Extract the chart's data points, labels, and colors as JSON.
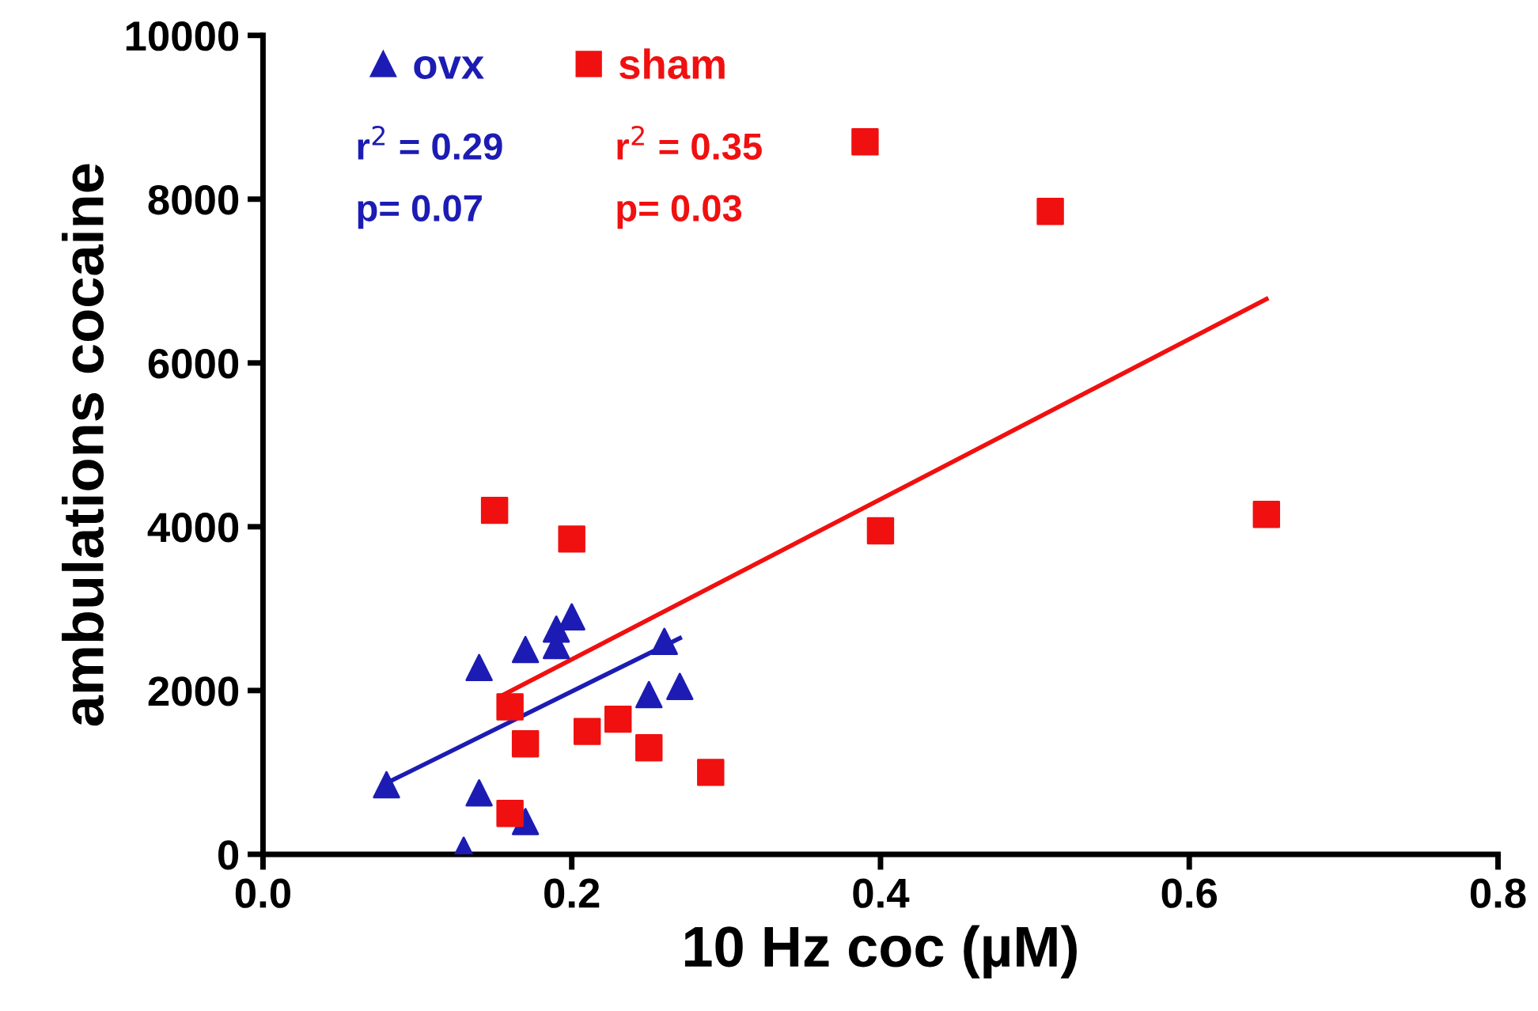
{
  "chart_data": {
    "type": "scatter",
    "xlabel": "10 Hz coc (µM)",
    "ylabel": "ambulations cocaine",
    "xlim": [
      0,
      0.8
    ],
    "xticks": [
      {
        "value": 0,
        "label": "0.0"
      },
      {
        "value": 0.2,
        "label": "0.2"
      },
      {
        "value": 0.4,
        "label": "0.4"
      },
      {
        "value": 0.6,
        "label": "0.6"
      },
      {
        "value": 0.8,
        "label": "0.8"
      }
    ],
    "ylim": [
      0,
      10000
    ],
    "yticks": [
      0,
      2000,
      4000,
      6000,
      8000,
      10000
    ],
    "grid": false,
    "legend": "top left",
    "series": [
      {
        "name": "ovx",
        "color": "#1c1cb4",
        "marker": "triangle",
        "x": [
          0.08,
          0.13,
          0.14,
          0.14,
          0.17,
          0.17,
          0.19,
          0.19,
          0.2,
          0.25,
          0.26,
          0.27
        ],
        "values": [
          850,
          50,
          750,
          2280,
          400,
          2500,
          2550,
          2750,
          2900,
          1950,
          2600,
          2050
        ]
      },
      {
        "name": "sham",
        "color": "#f01010",
        "marker": "square",
        "x": [
          0.15,
          0.16,
          0.16,
          0.17,
          0.2,
          0.21,
          0.23,
          0.25,
          0.29,
          0.39,
          0.4,
          0.51,
          0.65
        ],
        "values": [
          4200,
          1800,
          500,
          1350,
          3850,
          1500,
          1650,
          1300,
          1000,
          8700,
          3950,
          7850,
          4150
        ]
      },
      {
        "type": "line",
        "color": "#1c1cb4",
        "x": [
          0.08,
          0.27
        ],
        "values": [
          870,
          2640
        ]
      },
      {
        "type": "line",
        "color": "#f01010",
        "x": [
          0.156,
          0.65
        ],
        "values": [
          1950,
          6780
        ]
      }
    ],
    "annotations": [
      "r$^{2}$ = 0.29",
      "p= 0.07",
      "r$^{2}$ = 0.35",
      "p= 0.03"
    ]
  }
}
